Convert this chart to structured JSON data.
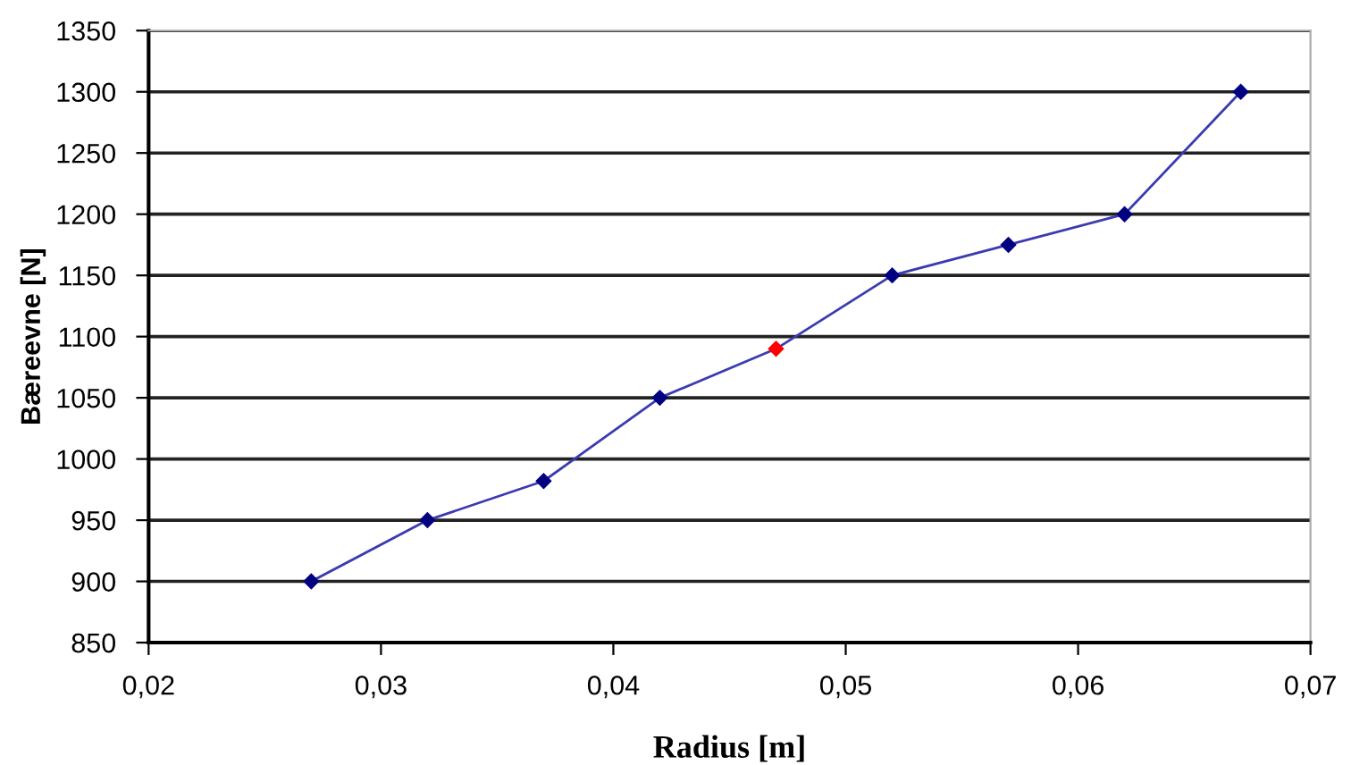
{
  "chart_data": {
    "type": "line",
    "xlabel": "Radius [m]",
    "ylabel": "Bæreevne [N]",
    "series": [
      {
        "color": "#3b3bb0",
        "colors": [
          "#000080",
          "#000080",
          "#000080",
          "#000080",
          "#ff0000",
          "#000080",
          "#000080",
          "#000080",
          "#000080"
        ],
        "x": [
          0.027,
          0.032,
          0.037,
          0.042,
          0.047,
          0.052,
          0.057,
          0.062,
          0.067
        ],
        "values": [
          900,
          950,
          982,
          1050,
          1090,
          1150,
          1175,
          1200,
          1300
        ]
      }
    ],
    "xlim": [
      0.02,
      0.07
    ],
    "xticks": [
      {
        "value": 0.02,
        "label": "0,02"
      },
      {
        "value": 0.03,
        "label": "0,03"
      },
      {
        "value": 0.04,
        "label": "0,04"
      },
      {
        "value": 0.05,
        "label": "0,05"
      },
      {
        "value": 0.06,
        "label": "0,06"
      },
      {
        "value": 0.07,
        "label": "0,07"
      }
    ],
    "ylim": [
      850,
      1350
    ],
    "yticks": [
      850,
      900,
      950,
      1000,
      1050,
      1100,
      1150,
      1200,
      1250,
      1300,
      1350
    ],
    "grid": "y",
    "marker": "diamond",
    "line_style": "solid",
    "legend": false
  }
}
